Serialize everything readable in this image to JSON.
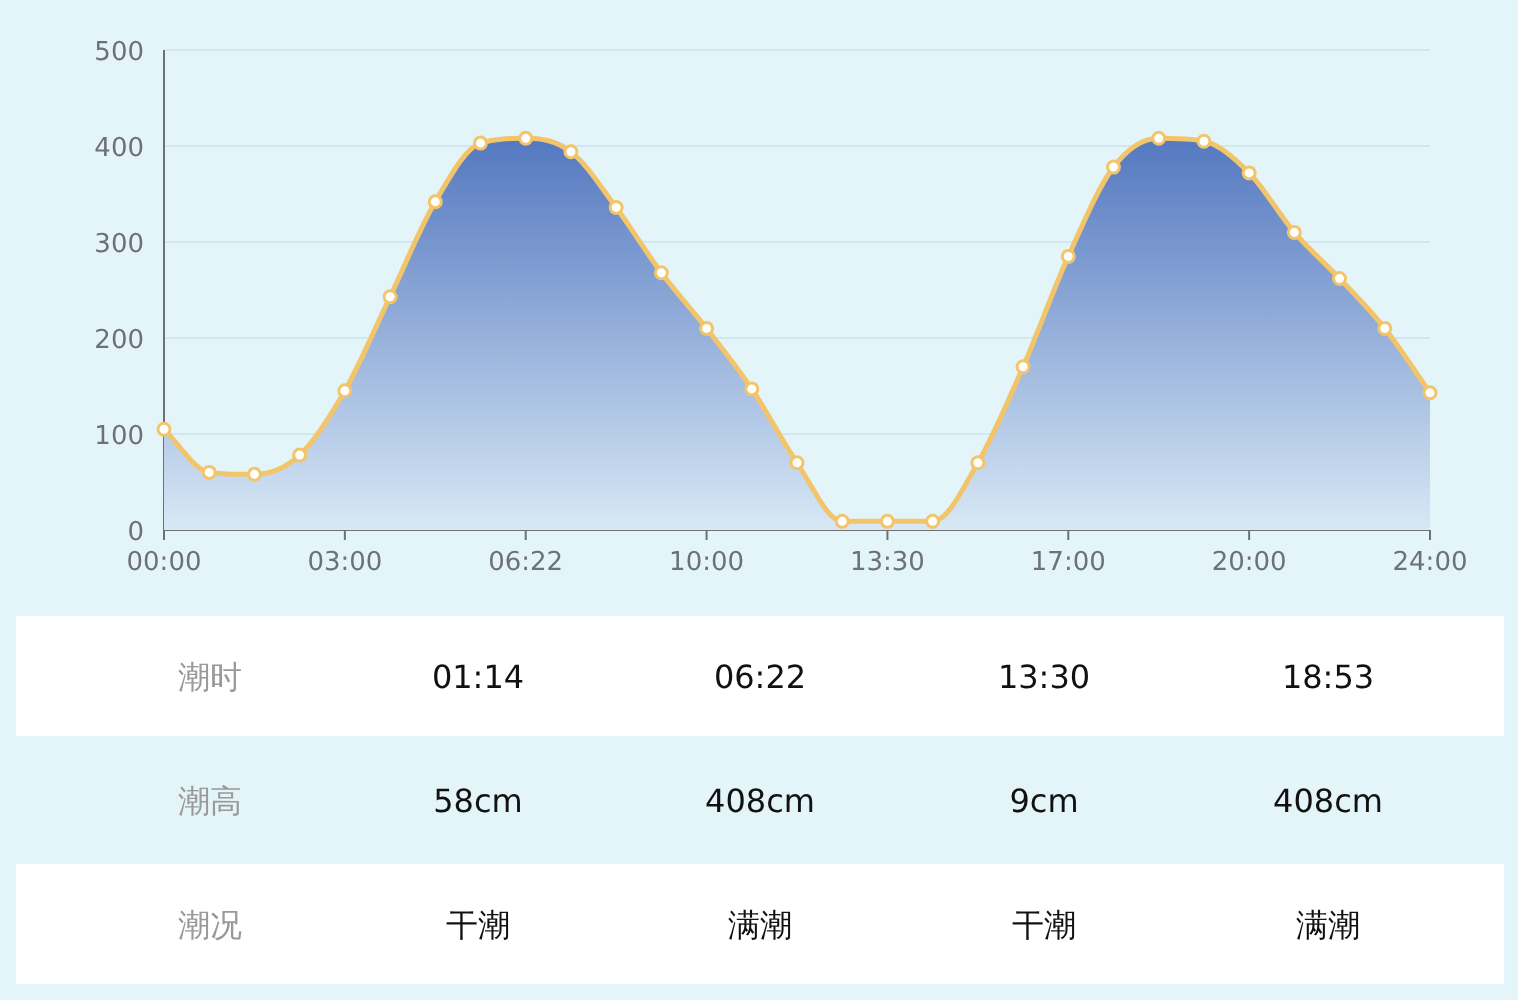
{
  "chart_data": [
    {
      "type": "area",
      "categories": [
        "00:00",
        null,
        null,
        null,
        "03:00",
        null,
        null,
        null,
        "06:22",
        null,
        null,
        null,
        "10:00",
        null,
        null,
        null,
        "13:30",
        null,
        null,
        null,
        "17:00",
        null,
        null,
        null,
        "20:00",
        null,
        null,
        null,
        "24:00"
      ],
      "series": [
        {
          "color": "#f2c56b",
          "values": [
            105,
            60,
            58,
            78,
            145,
            243,
            342,
            403,
            408,
            394,
            336,
            268,
            210,
            147,
            70,
            9,
            9,
            9,
            70,
            170,
            285,
            378,
            408,
            405,
            372,
            310,
            262,
            210,
            143
          ]
        }
      ],
      "ylim": [
        0,
        500
      ],
      "yticks": [
        0,
        100,
        200,
        300,
        400,
        500
      ],
      "grid": "y",
      "marker": "circle"
    },
    {
      "type": "other",
      "annotations": [
        "潮时",
        "01:14",
        "06:22",
        "13:30",
        "18:53",
        "潮高",
        "58cm",
        "408cm",
        "9cm",
        "408cm",
        "潮况",
        "干潮",
        "满潮",
        "干潮",
        "满潮"
      ]
    }
  ]
}
